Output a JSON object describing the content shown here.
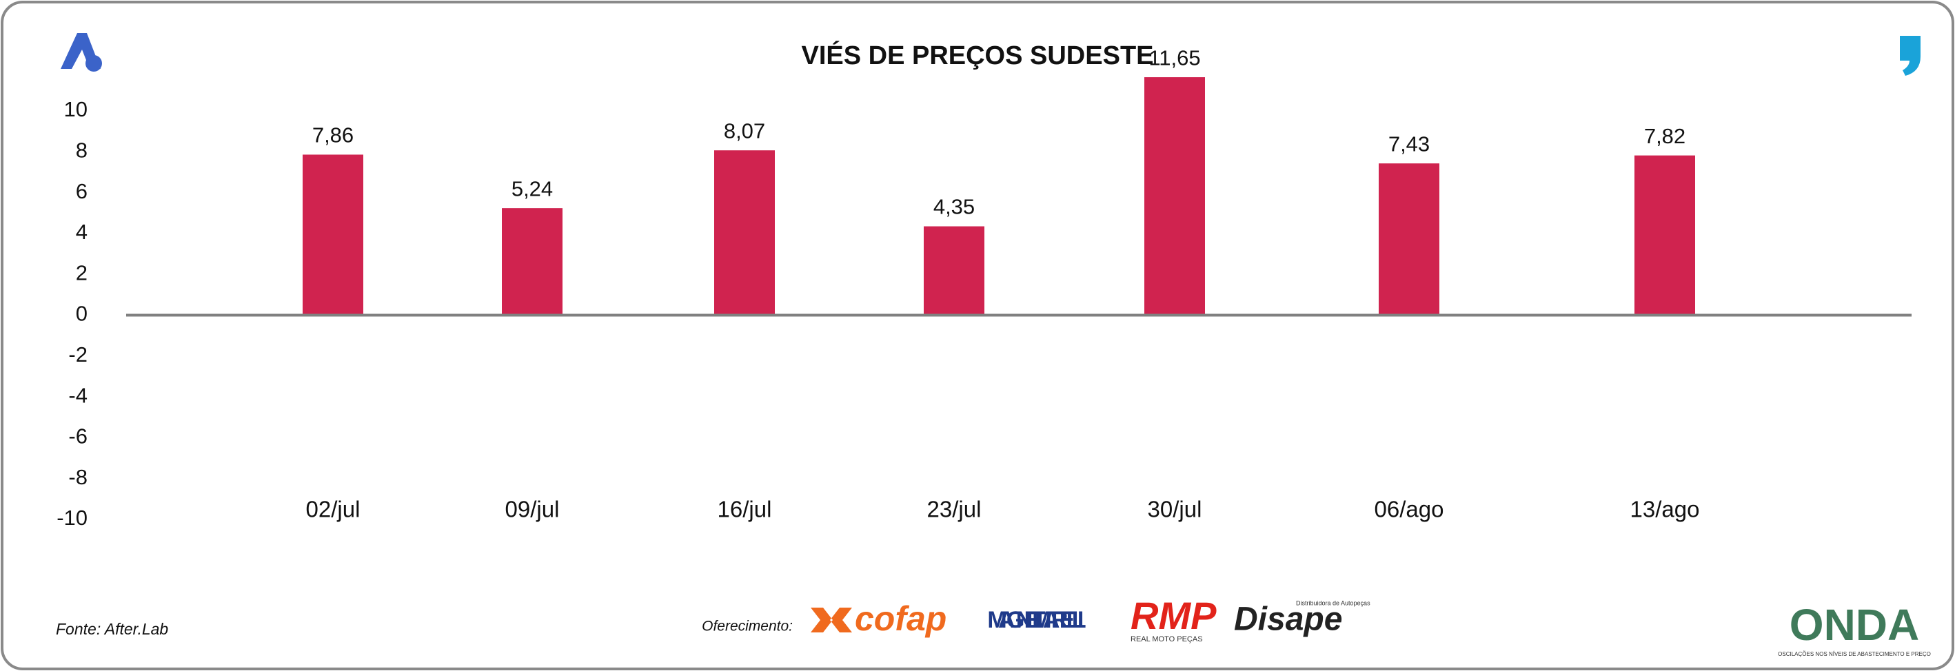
{
  "chart_data": {
    "type": "bar",
    "title": "VIÉS DE PREÇOS SUDESTE",
    "categories": [
      "02/jul",
      "09/jul",
      "16/jul",
      "23/jul",
      "30/jul",
      "06/ago",
      "13/ago"
    ],
    "values": [
      7.86,
      5.24,
      8.07,
      4.35,
      11.65,
      7.43,
      7.82
    ],
    "value_labels": [
      "7,86",
      "5,24",
      "8,07",
      "4,35",
      "11,65",
      "7,43",
      "7,82"
    ],
    "color": "#d0234f",
    "ylim": [
      -10,
      10
    ],
    "yticks": [
      -10,
      -8,
      -6,
      -4,
      -2,
      0,
      2,
      4,
      6,
      8,
      10
    ],
    "grid": false
  },
  "footer": {
    "source": "Fonte: After.Lab",
    "sponsor_label": "Oferecimento:",
    "sponsors": [
      "cofap",
      "MAGNETI MARELLI",
      "RMP",
      "REAL MOTO PEÇAS",
      "Disape",
      "Distribuidora de Autopeças"
    ],
    "brand": "ONDA",
    "brand_tagline": "OSCILAÇÕES NOS NÍVEIS DE ABASTECIMENTO E PREÇO"
  }
}
